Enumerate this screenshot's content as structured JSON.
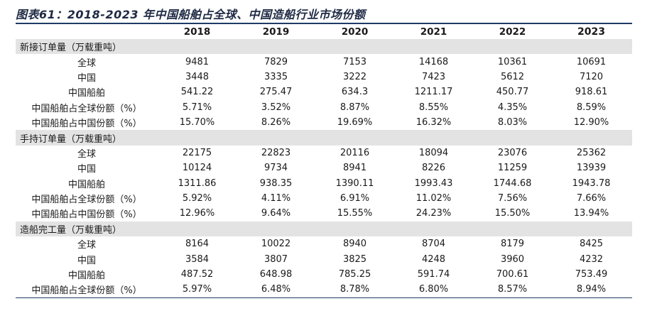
{
  "title": "图表61：2018-2023 年中国船舶占全球、中国造船行业市场份额",
  "years": [
    "2018",
    "2019",
    "2020",
    "2021",
    "2022",
    "2023"
  ],
  "sections": [
    {
      "label": "新接订单量（万载重吨）",
      "rows": [
        {
          "label": "全球",
          "values": [
            "9481",
            "7829",
            "7153",
            "14168",
            "10361",
            "10691"
          ]
        },
        {
          "label": "中国",
          "values": [
            "3448",
            "3335",
            "3222",
            "7423",
            "5612",
            "7120"
          ]
        },
        {
          "label": "中国船舶",
          "values": [
            "541.22",
            "275.47",
            "634.3",
            "1211.17",
            "450.77",
            "918.61"
          ]
        },
        {
          "label": "中国船舶占全球份额（%）",
          "values": [
            "5.71%",
            "3.52%",
            "8.87%",
            "8.55%",
            "4.35%",
            "8.59%"
          ]
        },
        {
          "label": "中国船舶占中国份额（%）",
          "values": [
            "15.70%",
            "8.26%",
            "19.69%",
            "16.32%",
            "8.03%",
            "12.90%"
          ]
        }
      ]
    },
    {
      "label": "手持订单量（万载重吨）",
      "rows": [
        {
          "label": "全球",
          "values": [
            "22175",
            "22823",
            "20116",
            "18094",
            "23076",
            "25362"
          ]
        },
        {
          "label": "中国",
          "values": [
            "10124",
            "9734",
            "8941",
            "8226",
            "11259",
            "13939"
          ]
        },
        {
          "label": "中国船舶",
          "values": [
            "1311.86",
            "938.35",
            "1390.11",
            "1993.43",
            "1744.68",
            "1943.78"
          ]
        },
        {
          "label": "中国船舶占全球份额（%）",
          "values": [
            "5.92%",
            "4.11%",
            "6.91%",
            "11.02%",
            "7.56%",
            "7.66%"
          ]
        },
        {
          "label": "中国船舶占中国份额（%）",
          "values": [
            "12.96%",
            "9.64%",
            "15.55%",
            "24.23%",
            "15.50%",
            "13.94%"
          ]
        }
      ]
    },
    {
      "label": "造船完工量（万载重吨）",
      "rows": [
        {
          "label": "全球",
          "values": [
            "8164",
            "10022",
            "8940",
            "8704",
            "8179",
            "8425"
          ]
        },
        {
          "label": "中国",
          "values": [
            "3584",
            "3807",
            "3825",
            "4248",
            "3960",
            "4232"
          ]
        },
        {
          "label": "中国船舶",
          "values": [
            "487.52",
            "648.98",
            "785.25",
            "591.74",
            "700.61",
            "753.49"
          ]
        },
        {
          "label": "中国船舶占全球份额（%）",
          "values": [
            "5.97%",
            "6.48%",
            "8.78%",
            "6.80%",
            "8.57%",
            "8.94%"
          ]
        }
      ]
    }
  ]
}
